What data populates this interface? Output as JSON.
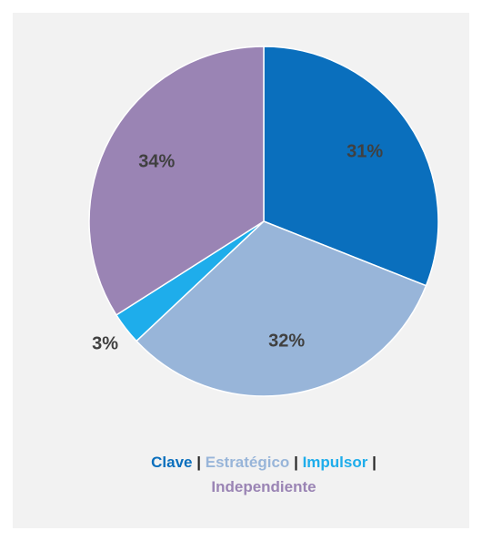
{
  "chart_data": {
    "type": "pie",
    "categories": [
      "Clave",
      "Estratégico",
      "Impulsor",
      "Independiente"
    ],
    "values": [
      31,
      32,
      3,
      34
    ],
    "value_labels": [
      "31%",
      "32%",
      "3%",
      "34%"
    ],
    "colors": [
      "#0a6fbd",
      "#98b5d9",
      "#1eadeb",
      "#9a84b4"
    ],
    "legend_separator": "|"
  }
}
